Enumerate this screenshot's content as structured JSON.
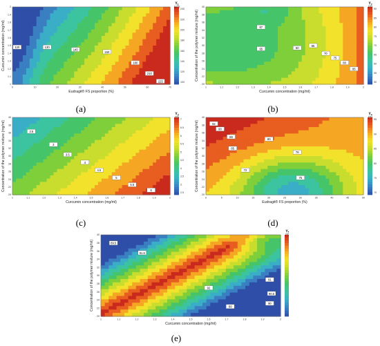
{
  "colors": {
    "ramp": [
      "#2e4ea8",
      "#3a7fc2",
      "#3aaec7",
      "#3cc4a0",
      "#46c46a",
      "#7fcf3b",
      "#c8dd2e",
      "#f3e22b",
      "#f5a623",
      "#e85d20",
      "#c92a1d"
    ]
  },
  "panels": [
    {
      "caption": "(a)",
      "x_label": "Eudragit® FS proportion (%)",
      "y_label": "Curcumin concentration (mg/ml)",
      "legend_title": [
        "Y",
        "(µm)"
      ],
      "legend_sub": "1",
      "legend_ticks": [
        "240",
        "220",
        "200",
        "180",
        "160",
        "140",
        "120",
        "100"
      ],
      "x_ticks": [
        "0",
        "10",
        "20",
        "30",
        "40",
        "50",
        "60",
        "70"
      ],
      "y_ticks": [
        "1",
        "1.1",
        "1.2",
        "1.3",
        "1.4",
        "1.5",
        "1.6",
        "1.7",
        "1.8",
        "1.9",
        "2"
      ],
      "contour_labels": [
        "120",
        "130",
        "140",
        "150",
        "180",
        "210",
        "225"
      ]
    },
    {
      "caption": "(b)",
      "x_label": "Curcumin concentration (mg/ml)",
      "y_label": "Concentration of the polymer mixture (mg/ml)",
      "legend_title": [
        "Y",
        "(%)"
      ],
      "legend_sub": "2",
      "legend_ticks": [
        "90",
        "85",
        "80",
        "75",
        "70",
        "65",
        "60",
        "55",
        "50"
      ],
      "x_ticks": [
        "1",
        "1.1",
        "1.2",
        "1.3",
        "1.4",
        "1.5",
        "1.6",
        "1.7",
        "1.8",
        "1.9",
        "2"
      ],
      "y_ticks": [
        "20",
        "22",
        "24",
        "26",
        "28",
        "30",
        "32",
        "34",
        "36",
        "38",
        "40"
      ],
      "contour_labels": [
        "67",
        "65",
        "60",
        "55",
        "70",
        "75",
        "80",
        "85"
      ]
    },
    {
      "caption": "(c)",
      "x_label": "Curcumin concentration (mg/ml)",
      "y_label": "Concentration of the polymer mixture (mg/ml)",
      "legend_title": [
        "Y",
        "(%)"
      ],
      "legend_sub": "3",
      "legend_ticks": [
        "7",
        "6.5",
        "6",
        "5.5",
        "5",
        "4.5",
        "4",
        "3.5",
        "3",
        "2.5"
      ],
      "x_ticks": [
        "1",
        "1.1",
        "1.2",
        "1.3",
        "1.4",
        "1.5",
        "1.6",
        "1.7",
        "1.8",
        "1.9",
        "2"
      ],
      "y_ticks": [
        "20",
        "22",
        "24",
        "26",
        "28",
        "30",
        "32",
        "34",
        "36",
        "38",
        "40"
      ],
      "contour_labels": [
        "2.5",
        "3",
        "3.5",
        "4",
        "4.5",
        "5",
        "5.5",
        "6"
      ]
    },
    {
      "caption": "(d)",
      "x_label": "Eudragit® FS proportion (%)",
      "y_label": "Concentration of the polymer mixture (mg/ml)",
      "legend_title": [
        "Y",
        "(%)"
      ],
      "legend_sub": "4",
      "legend_ticks": [
        "95",
        "90",
        "85",
        "80",
        "75",
        "70"
      ],
      "x_ticks": [
        "0",
        "5",
        "10",
        "15",
        "20",
        "25",
        "30",
        "35",
        "40",
        "45",
        "50"
      ],
      "y_ticks": [
        "20",
        "22",
        "24",
        "26",
        "28",
        "30",
        "32",
        "34",
        "36",
        "38",
        "40"
      ],
      "contour_labels": [
        "92",
        "90",
        "88",
        "85",
        "80",
        "78",
        "75",
        "72"
      ]
    },
    {
      "caption": "(e)",
      "x_label": "Curcumin concentration (mg/ml)",
      "y_label": "Concentration of the polymer mixture (mg/ml)",
      "legend_title": [
        "Y",
        "(%)"
      ],
      "legend_sub": "5",
      "legend_ticks": [
        "92",
        "91.5",
        "91",
        "90.5",
        "90",
        "89.5",
        "89",
        "88.5",
        "88",
        "87.5"
      ],
      "x_ticks": [
        "1",
        "1.1",
        "1.2",
        "1.3",
        "1.4",
        "1.5",
        "1.6",
        "1.7",
        "1.8",
        "1.9",
        "2"
      ],
      "y_ticks": [
        "20",
        "22",
        "24",
        "26",
        "28",
        "30",
        "32",
        "34",
        "36",
        "38",
        "40"
      ],
      "contour_labels": [
        "89.5",
        "91.5",
        "92",
        "91",
        "90.5",
        "90",
        "89"
      ]
    }
  ],
  "chart_data": [
    {
      "type": "heatmap",
      "title": "",
      "xlabel": "Eudragit® FS proportion (%)",
      "ylabel": "Curcumin concentration (mg/ml)",
      "xlim": [
        0,
        70
      ],
      "ylim": [
        1,
        2
      ],
      "zlabel": "Y1 (µm)",
      "zlim": [
        100,
        240
      ],
      "contour_levels": [
        120,
        130,
        140,
        150,
        180,
        210,
        225
      ]
    },
    {
      "type": "heatmap",
      "title": "",
      "xlabel": "Curcumin concentration (mg/ml)",
      "ylabel": "Concentration of the polymer mixture (mg/ml)",
      "xlim": [
        1,
        2
      ],
      "ylim": [
        20,
        40
      ],
      "zlabel": "Y2 (%)",
      "zlim": [
        50,
        90
      ],
      "contour_levels": [
        55,
        60,
        65,
        67,
        70,
        75,
        80,
        85
      ]
    },
    {
      "type": "heatmap",
      "title": "",
      "xlabel": "Curcumin concentration (mg/ml)",
      "ylabel": "Concentration of the polymer mixture (mg/ml)",
      "xlim": [
        1,
        2
      ],
      "ylim": [
        20,
        40
      ],
      "zlabel": "Y3 (%)",
      "zlim": [
        2.5,
        7
      ],
      "contour_levels": [
        2.5,
        3,
        3.5,
        4,
        4.5,
        5,
        5.5,
        6
      ]
    },
    {
      "type": "heatmap",
      "title": "",
      "xlabel": "Eudragit® FS proportion (%)",
      "ylabel": "Concentration of the polymer mixture (mg/ml)",
      "xlim": [
        0,
        50
      ],
      "ylim": [
        20,
        40
      ],
      "zlabel": "Y4 (%)",
      "zlim": [
        70,
        95
      ],
      "contour_levels": [
        72,
        75,
        78,
        80,
        85,
        88,
        90,
        92
      ]
    },
    {
      "type": "heatmap",
      "title": "",
      "xlabel": "Curcumin concentration (mg/ml)",
      "ylabel": "Concentration of the polymer mixture (mg/ml)",
      "xlim": [
        1,
        2
      ],
      "ylim": [
        20,
        40
      ],
      "zlabel": "Y5 (%)",
      "zlim": [
        87.5,
        92
      ],
      "contour_levels": [
        89,
        89.5,
        90,
        90.5,
        91,
        91.5,
        92
      ]
    }
  ]
}
